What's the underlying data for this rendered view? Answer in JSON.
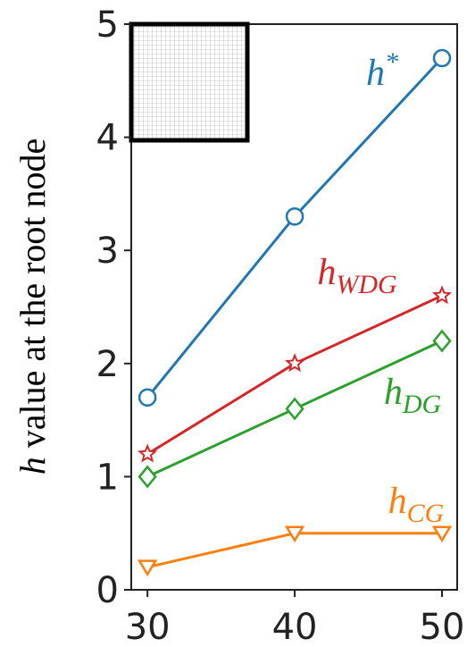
{
  "chart_data": {
    "type": "line",
    "y_label": "h value at the root node",
    "x": [
      30,
      40,
      50
    ],
    "series": [
      {
        "name": "h*",
        "color": "#1f77b4",
        "marker": "circle",
        "values": [
          1.7,
          3.3,
          4.7
        ]
      },
      {
        "name": "hWDG",
        "color": "#d62728",
        "marker": "star",
        "values": [
          1.2,
          2.0,
          2.6
        ]
      },
      {
        "name": "hDG",
        "color": "#2ca02c",
        "marker": "diamond",
        "values": [
          1.0,
          1.6,
          2.2
        ]
      },
      {
        "name": "hCG",
        "color": "#ff7f0e",
        "marker": "triangle-down",
        "values": [
          0.2,
          0.5,
          0.5
        ]
      }
    ],
    "xlim": [
      28.9,
      51.03
    ],
    "xticks": [
      30,
      40,
      50
    ],
    "ylim": [
      0,
      5
    ],
    "yticks": [
      0,
      1,
      2,
      3,
      4,
      5
    ]
  }
}
